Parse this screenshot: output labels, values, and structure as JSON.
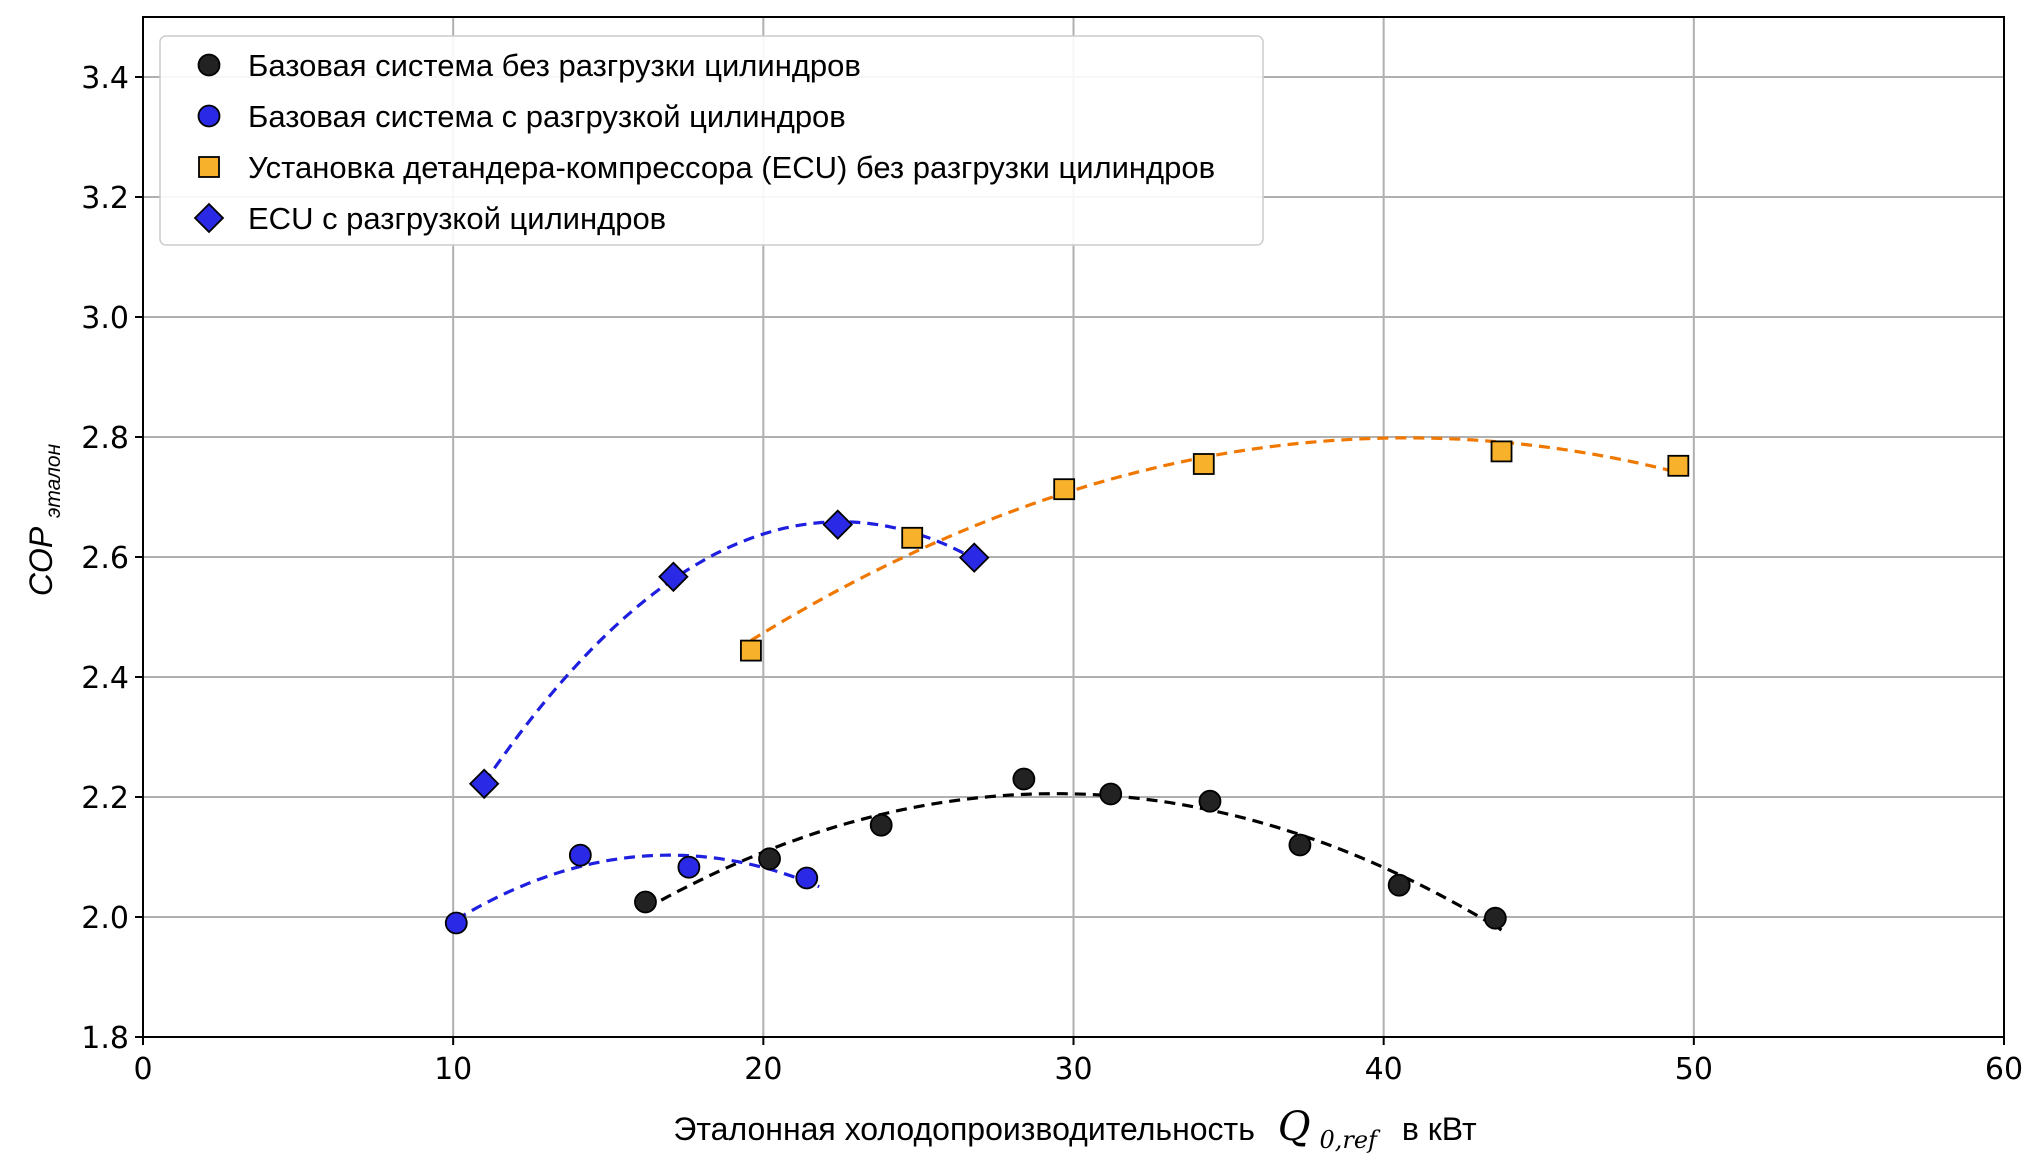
{
  "chart_data": {
    "type": "scatter",
    "xlabel_prefix": "Эталонная холодопроизводительность",
    "xlabel_symbol": "Q",
    "xlabel_subscript": "0,ref",
    "xlabel_suffix": "в кВт",
    "ylabel_main": "COP",
    "ylabel_subscript": "эталон",
    "xlim": [
      0,
      60
    ],
    "ylim": [
      1.8,
      3.5
    ],
    "xticks": [
      "0",
      "10",
      "20",
      "30",
      "40",
      "50",
      "60"
    ],
    "yticks": [
      "1.8",
      "2.0",
      "2.2",
      "2.4",
      "2.6",
      "2.8",
      "3.0",
      "3.2",
      "3.4"
    ],
    "grid": true,
    "legend_position": "top-left",
    "series": [
      {
        "name": "Базовая система без разгрузки цилиндров",
        "marker": "circle",
        "color": "#222222",
        "fit_color": "#000000",
        "fit_range": [
          16.2,
          43.8
        ],
        "x": [
          16.2,
          20.2,
          23.8,
          28.4,
          31.2,
          34.4,
          37.3,
          40.5,
          43.6
        ],
        "y": [
          2.025,
          2.097,
          2.153,
          2.23,
          2.205,
          2.193,
          2.12,
          2.053,
          1.998
        ]
      },
      {
        "name": "Базовая система с разгрузкой цилиндров",
        "marker": "circle",
        "color": "#2a2ae6",
        "fit_color": "#1f1fe0",
        "fit_range": [
          10.1,
          21.8
        ],
        "x": [
          10.1,
          14.1,
          17.6,
          21.4
        ],
        "y": [
          1.99,
          2.103,
          2.083,
          2.065
        ]
      },
      {
        "name": "Установка детандера-компрессора (ECU) без разгрузки цилиндров",
        "marker": "square",
        "color": "#f8b12b",
        "fit_color": "#f07800",
        "fit_range": [
          19.6,
          49.6
        ],
        "x": [
          19.6,
          24.8,
          29.7,
          34.2,
          43.8,
          49.5
        ],
        "y": [
          2.444,
          2.632,
          2.713,
          2.755,
          2.776,
          2.752
        ]
      },
      {
        "name": "ECU с разгрузкой цилиндров",
        "marker": "diamond",
        "color": "#2a2ae6",
        "fit_color": "#1f1fe0",
        "fit_range": [
          11.0,
          26.8
        ],
        "x": [
          11.0,
          17.1,
          22.4,
          26.8
        ],
        "y": [
          2.222,
          2.567,
          2.654,
          2.599
        ]
      }
    ]
  }
}
